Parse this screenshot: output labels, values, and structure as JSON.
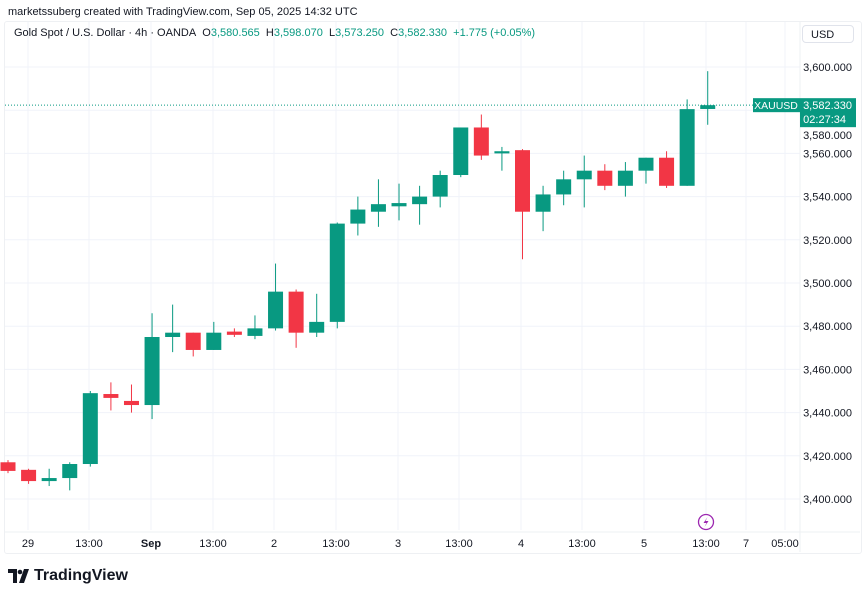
{
  "credit": "marketssuberg created with TradingView.com, Sep 05, 2025 14:32 UTC",
  "legend": {
    "symbol": "Gold Spot / U.S. Dollar · 4h · OANDA",
    "o_label": "O",
    "o": "3,580.565",
    "h_label": "H",
    "h": "3,598.070",
    "l_label": "L",
    "l": "3,573.250",
    "c_label": "C",
    "c": "3,582.330",
    "change": "+1.775 (+0.05%)"
  },
  "currency_button": "USD",
  "price_tag": {
    "symbol": "XAUUSD",
    "price": "3,582.330",
    "countdown": "02:27:34"
  },
  "brand": "TradingView",
  "colors": {
    "up": "#089981",
    "down": "#F23645",
    "event_icon": "#9c27b0"
  },
  "icons": {
    "event": "lightning-icon",
    "logo": "tradingview-logo-icon"
  },
  "chart_data": {
    "type": "candlestick",
    "interval": "4h",
    "last_price": 3582.33,
    "ylim": [
      3386,
      3612
    ],
    "y_ticks": [
      "3,400.000",
      "3,420.000",
      "3,440.000",
      "3,460.000",
      "3,480.000",
      "3,500.000",
      "3,520.000",
      "3,540.000",
      "3,560.000",
      "3,580.000",
      "3,600.000"
    ],
    "x_ticks": [
      {
        "label": "29",
        "bold": false
      },
      {
        "label": "13:00",
        "bold": false
      },
      {
        "label": "Sep",
        "bold": true
      },
      {
        "label": "13:00",
        "bold": false
      },
      {
        "label": "2",
        "bold": false
      },
      {
        "label": "13:00",
        "bold": false
      },
      {
        "label": "3",
        "bold": false
      },
      {
        "label": "13:00",
        "bold": false
      },
      {
        "label": "4",
        "bold": false
      },
      {
        "label": "13:00",
        "bold": false
      },
      {
        "label": "5",
        "bold": false
      },
      {
        "label": "13:00",
        "bold": false
      },
      {
        "label": "7",
        "bold": false
      },
      {
        "label": "05:00",
        "bold": false
      }
    ],
    "grid": true,
    "candles": [
      [
        3417,
        3418,
        3412,
        3413
      ],
      [
        3413.5,
        3414,
        3407,
        3408.3
      ],
      [
        3408.3,
        3414,
        3406,
        3409.7
      ],
      [
        3409.7,
        3417,
        3404,
        3416.2
      ],
      [
        3416.2,
        3450,
        3415,
        3449
      ],
      [
        3448.6,
        3454,
        3441,
        3446.8
      ],
      [
        3445.4,
        3453,
        3440,
        3443.5
      ],
      [
        3443.5,
        3486,
        3437,
        3475
      ],
      [
        3475,
        3490,
        3468,
        3477
      ],
      [
        3477,
        3477,
        3466,
        3469
      ],
      [
        3469,
        3482,
        3469,
        3477
      ],
      [
        3477.5,
        3479,
        3475,
        3476
      ],
      [
        3475.5,
        3485,
        3474,
        3479
      ],
      [
        3479,
        3509,
        3478,
        3496
      ],
      [
        3496,
        3497,
        3470,
        3477
      ],
      [
        3477,
        3495,
        3475,
        3482
      ],
      [
        3482,
        3528,
        3479,
        3527.5
      ],
      [
        3527.5,
        3540,
        3522,
        3534
      ],
      [
        3533,
        3548,
        3526,
        3536.5
      ],
      [
        3535.5,
        3546,
        3529,
        3537
      ],
      [
        3536.5,
        3545,
        3527,
        3540
      ],
      [
        3540,
        3552,
        3535,
        3550
      ],
      [
        3550,
        3572,
        3549,
        3572
      ],
      [
        3572,
        3578,
        3557,
        3559
      ],
      [
        3560,
        3563,
        3552,
        3561
      ],
      [
        3561.5,
        3562,
        3511,
        3533
      ],
      [
        3533,
        3545,
        3524,
        3541
      ],
      [
        3541,
        3552,
        3536,
        3548
      ],
      [
        3548,
        3559,
        3535,
        3552
      ],
      [
        3552,
        3555,
        3543,
        3545
      ],
      [
        3545,
        3556,
        3540,
        3552
      ],
      [
        3552,
        3558,
        3546,
        3558
      ],
      [
        3558,
        3561,
        3544,
        3545
      ],
      [
        3545,
        3585,
        3545,
        3580.5
      ],
      [
        3580.565,
        3598.07,
        3573.25,
        3582.33
      ]
    ]
  }
}
